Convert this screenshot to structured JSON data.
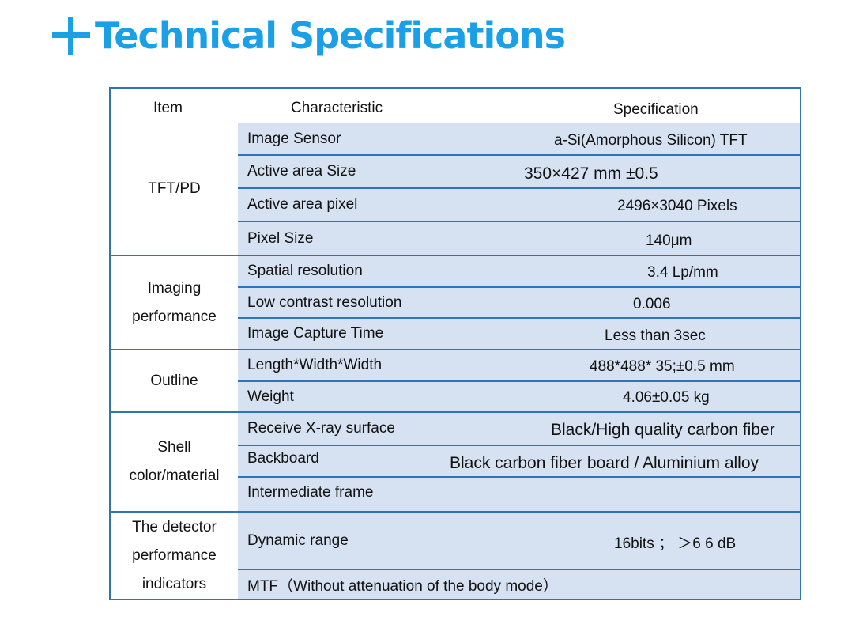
{
  "title": "Technical Specifications",
  "table": {
    "headers": {
      "item": "Item",
      "characteristic": "Characteristic",
      "specification": "Specification"
    },
    "groups": [
      {
        "item": "TFT/PD",
        "rows": [
          {
            "characteristic": "Image Sensor",
            "specification": "a-Si(Amorphous Silicon) TFT"
          },
          {
            "characteristic": "Active area Size",
            "specification": "350×427 mm ±0.5"
          },
          {
            "characteristic": "Active area pixel",
            "specification": "2496×3040 Pixels"
          },
          {
            "characteristic": "Pixel Size",
            "specification": "140μm"
          }
        ]
      },
      {
        "item_lines": [
          "Imaging",
          "performance"
        ],
        "rows": [
          {
            "characteristic": "Spatial resolution",
            "specification": "3.4 Lp/mm"
          },
          {
            "characteristic": "Low contrast resolution",
            "specification": "0.006"
          },
          {
            "characteristic": "Image Capture Time",
            "specification": "Less than 3sec"
          }
        ]
      },
      {
        "item": "Outline",
        "rows": [
          {
            "characteristic": "Length*Width*Width",
            "specification": "488*488* 35;±0.5 mm"
          },
          {
            "characteristic": "Weight",
            "specification": "4.06±0.05 kg"
          }
        ]
      },
      {
        "item_lines": [
          "Shell",
          "color/material"
        ],
        "rows": [
          {
            "characteristic": "Receive X-ray surface",
            "specification": "Black/High quality carbon fiber"
          },
          {
            "characteristic": "Backboard",
            "specification": "Black carbon fiber board / Aluminium alloy"
          },
          {
            "characteristic": "Intermediate frame",
            "specification": ""
          }
        ]
      },
      {
        "item_lines": [
          "The detector",
          "performance",
          "indicators"
        ],
        "rows": [
          {
            "characteristic": "Dynamic range",
            "specification": "16bits ； ＞6 6 dB"
          },
          {
            "characteristic": "MTF（Without attenuation of the body mode）",
            "specification": ""
          }
        ]
      }
    ]
  },
  "colors": {
    "accent": "#1aa0e6",
    "border": "#2f74b5",
    "row_fill": "#d6e1f1"
  }
}
